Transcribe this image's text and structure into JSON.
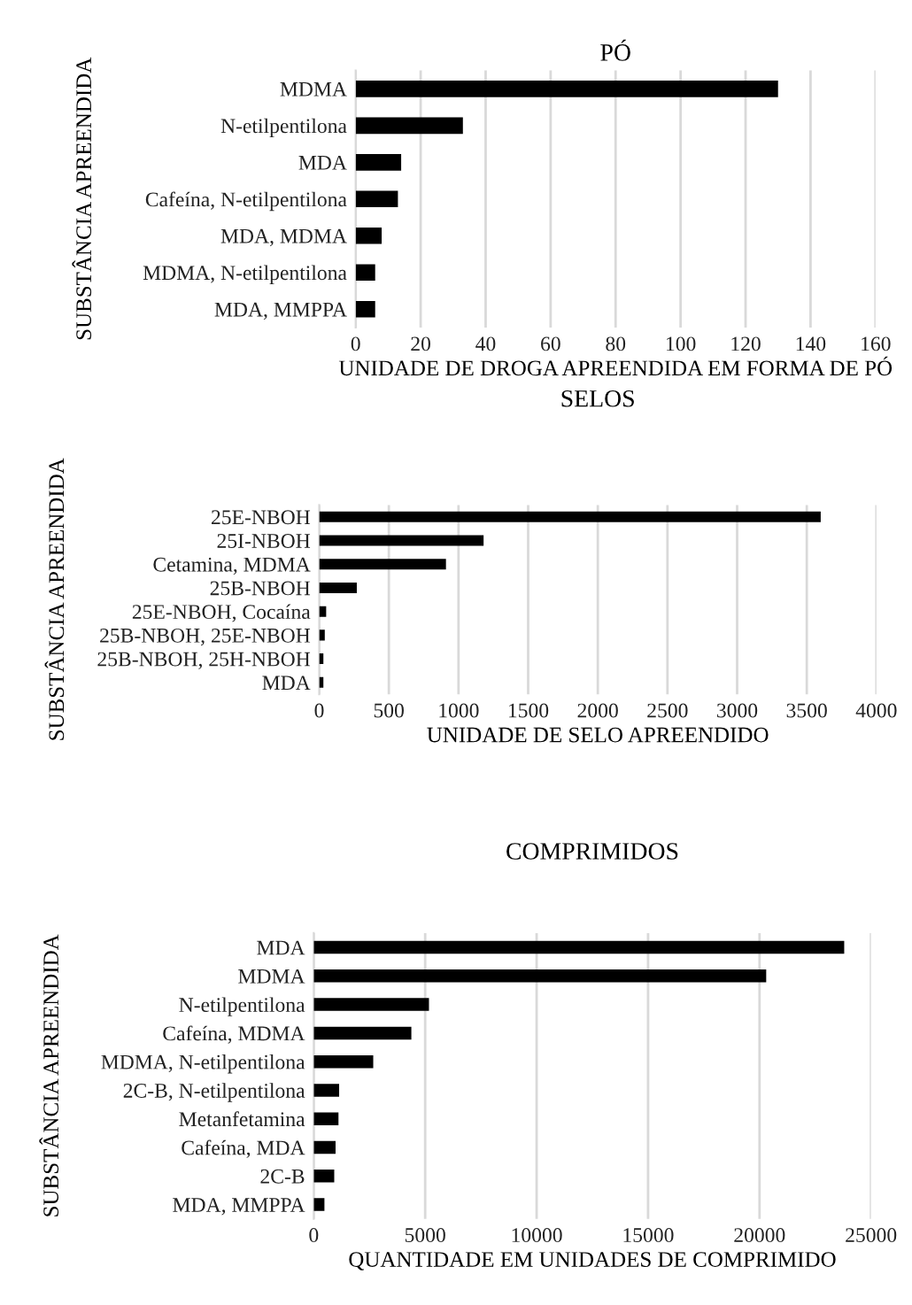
{
  "chart_data": [
    {
      "type": "bar",
      "orientation": "horizontal",
      "title": "PÓ",
      "xlabel": "UNIDADE DE DROGA APREENDIDA EM FORMA DE PÓ",
      "ylabel": "SUBSTÂNCIA APREENDIDA",
      "categories": [
        "MDMA",
        "N-etilpentilona",
        "MDA",
        "Cafeína, N-etilpentilona",
        "MDA, MDMA",
        "MDMA, N-etilpentilona",
        "MDA, MMPPA"
      ],
      "series": [
        {
          "color": "#000000",
          "values": [
            130,
            33,
            14,
            13,
            8,
            6,
            6
          ]
        }
      ],
      "xlim": [
        0,
        160
      ],
      "xticks": [
        0,
        20,
        40,
        60,
        80,
        100,
        120,
        140,
        160
      ],
      "grid": "x"
    },
    {
      "type": "bar",
      "orientation": "horizontal",
      "title": "SELOS",
      "xlabel": "UNIDADE DE SELO APREENDIDO",
      "ylabel": "SUBSTÂNCIA APREENDIDA",
      "categories": [
        "25E-NBOH",
        "25I-NBOH",
        "Cetamina, MDMA",
        "25B-NBOH",
        "25E-NBOH, Cocaína",
        "25B-NBOH, 25E-NBOH",
        "25B-NBOH, 25H-NBOH",
        "MDA"
      ],
      "series": [
        {
          "color": "#000000",
          "values": [
            3600,
            1180,
            910,
            270,
            50,
            40,
            30,
            30
          ]
        }
      ],
      "xlim": [
        0,
        4000
      ],
      "xticks": [
        0,
        500,
        1000,
        1500,
        2000,
        2500,
        3000,
        3500,
        4000
      ],
      "grid": "x"
    },
    {
      "type": "bar",
      "orientation": "horizontal",
      "title": "COMPRIMIDOS",
      "xlabel": "QUANTIDADE EM UNIDADES DE COMPRIMIDO",
      "ylabel": "SUBSTÂNCIA APREENDIDA",
      "categories": [
        "MDA",
        "MDMA",
        "N-etilpentilona",
        "Cafeína, MDMA",
        "MDMA, N-etilpentilona",
        "2C-B, N-etilpentilona",
        "Metanfetamina",
        "Cafeína, MDA",
        "2C-B",
        "MDA, MMPPA"
      ],
      "series": [
        {
          "color": "#000000",
          "values": [
            23800,
            20300,
            5170,
            4380,
            2670,
            1140,
            1110,
            980,
            920,
            480
          ]
        }
      ],
      "xlim": [
        0,
        25000
      ],
      "xticks": [
        0,
        5000,
        10000,
        15000,
        20000,
        25000
      ],
      "grid": "x"
    }
  ]
}
